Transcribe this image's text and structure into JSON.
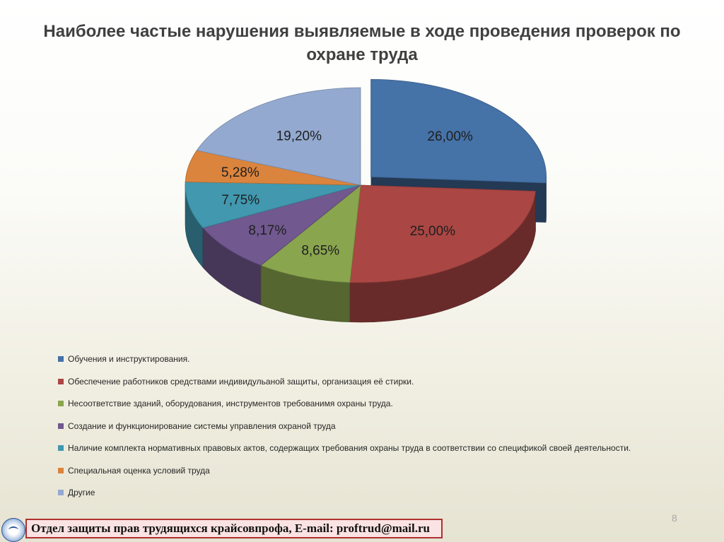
{
  "title": "Наиболее частые нарушения выявляемые в ходе проведения проверок по охране труда",
  "chart_data": {
    "type": "pie",
    "title": "Наиболее частые нарушения выявляемые в ходе проведения проверок по охране труда",
    "legend_position": "bottom",
    "slices": [
      {
        "name": "Обучения и инструктирования.",
        "value": 26.0,
        "label": "26,00%",
        "color": "#4572A7",
        "exploded": true
      },
      {
        "name": "Обеспечение работников средствами индивидульаной защиты, организация её стирки.",
        "value": 25.0,
        "label": "25,00%",
        "color": "#AA4643",
        "exploded": false
      },
      {
        "name": "Несоответствие зданий, оборудования, инструментов требованимя охраны труда.",
        "value": 8.65,
        "label": "8,65%",
        "color": "#89A54E",
        "exploded": false
      },
      {
        "name": "Создание и функционирование системы управления охраной труда",
        "value": 8.17,
        "label": "8,17%",
        "color": "#71588F",
        "exploded": false
      },
      {
        "name": "Наличие комплекта нормативных правовых актов, содержащих требования охраны труда в соответствии со спецификой своей деятельности.",
        "value": 7.75,
        "label": "7,75%",
        "color": "#4198AF",
        "exploded": false
      },
      {
        "name": "Специальная оценка условий труда",
        "value": 5.28,
        "label": "5,28%",
        "color": "#DB843D",
        "exploded": false
      },
      {
        "name": "Другие",
        "value": 19.2,
        "label": "19,20%",
        "color": "#93A9CF",
        "exploded": false
      }
    ]
  },
  "footer": {
    "text": "Отдел защиты прав трудящихся крайсовпрофа, E-mail: proftrud@mail.ru"
  },
  "page_number": "8"
}
